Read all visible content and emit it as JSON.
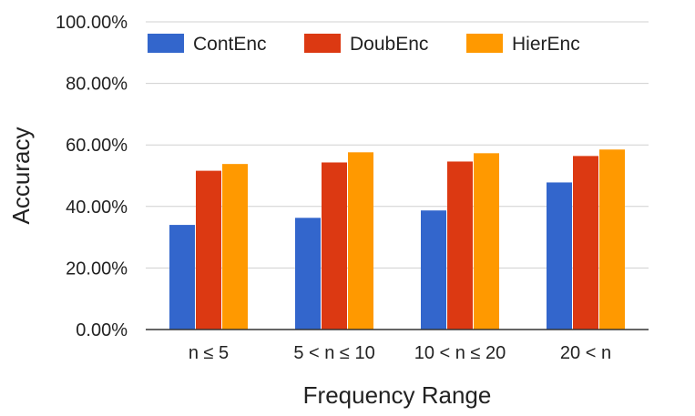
{
  "chart_data": {
    "type": "bar",
    "categories": [
      "n ≤ 5",
      "5 < n ≤ 10",
      "10 < n ≤ 20",
      "20 < n"
    ],
    "series": [
      {
        "name": "ContEnc",
        "values": [
          0.34,
          0.363,
          0.387,
          0.478
        ],
        "color": "#3366cc"
      },
      {
        "name": "DoubEnc",
        "values": [
          0.516,
          0.543,
          0.546,
          0.564
        ],
        "color": "#dc3912"
      },
      {
        "name": "HierEnc",
        "values": [
          0.538,
          0.576,
          0.573,
          0.585
        ],
        "color": "#ff9900"
      }
    ],
    "xlabel": "Frequency Range",
    "ylabel": "Accuracy",
    "ylim": [
      0,
      1
    ],
    "yticks": [
      0,
      0.2,
      0.4,
      0.6,
      0.8,
      1.0
    ],
    "ytick_labels": [
      "0.00%",
      "20.00%",
      "40.00%",
      "60.00%",
      "80.00%",
      "100.00%"
    ],
    "grid": true,
    "legend_position": "top"
  }
}
